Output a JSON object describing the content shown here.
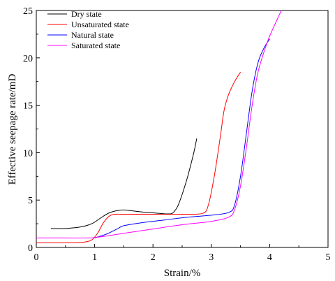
{
  "chart_data": {
    "type": "line",
    "title": "",
    "xlabel": "Strain/%",
    "ylabel": "Effective seepage rate/mD",
    "xlim": [
      0,
      5
    ],
    "ylim": [
      0,
      25
    ],
    "xticks": [
      "0",
      "1",
      "2",
      "3",
      "4",
      "5"
    ],
    "yticks": [
      "0",
      "5",
      "10",
      "15",
      "20",
      "25"
    ],
    "grid": false,
    "legend_position": "top-left",
    "series": [
      {
        "name": "Dry state",
        "color": "#000000",
        "x": [
          0.25,
          0.5,
          0.75,
          0.95,
          1.1,
          1.25,
          1.4,
          1.5,
          1.6,
          1.8,
          2.0,
          2.2,
          2.3,
          2.35,
          2.42,
          2.5,
          2.6,
          2.7,
          2.75
        ],
        "y": [
          2.0,
          2.0,
          2.15,
          2.5,
          3.1,
          3.65,
          3.9,
          3.95,
          3.9,
          3.75,
          3.65,
          3.55,
          3.55,
          3.7,
          4.3,
          5.6,
          7.6,
          10.0,
          11.5
        ]
      },
      {
        "name": "Unsaturated state",
        "color": "#ff0000",
        "x": [
          0.0,
          0.5,
          0.8,
          0.95,
          1.05,
          1.15,
          1.25,
          1.35,
          1.5,
          2.0,
          2.5,
          2.85,
          2.95,
          3.05,
          3.15,
          3.22,
          3.3,
          3.4,
          3.5
        ],
        "y": [
          0.5,
          0.5,
          0.55,
          0.8,
          1.5,
          2.6,
          3.3,
          3.5,
          3.5,
          3.5,
          3.5,
          3.6,
          4.5,
          7.5,
          11.5,
          14.5,
          16.2,
          17.5,
          18.5
        ]
      },
      {
        "name": "Natural state",
        "color": "#0000ff",
        "x": [
          1.0,
          1.2,
          1.4,
          1.5,
          1.8,
          2.2,
          2.6,
          3.0,
          3.3,
          3.4,
          3.5,
          3.6,
          3.7,
          3.8,
          3.9,
          4.0
        ],
        "y": [
          1.0,
          1.4,
          2.0,
          2.3,
          2.6,
          2.9,
          3.2,
          3.4,
          3.7,
          4.5,
          7.5,
          12.0,
          16.5,
          19.5,
          21.0,
          22.0
        ]
      },
      {
        "name": "Saturated state",
        "color": "#ff00ff",
        "x": [
          0.0,
          0.5,
          0.9,
          1.0,
          1.2,
          1.5,
          2.0,
          2.5,
          3.0,
          3.3,
          3.4,
          3.5,
          3.6,
          3.7,
          3.8,
          3.95,
          4.05,
          4.2
        ],
        "y": [
          1.0,
          1.0,
          1.0,
          1.05,
          1.2,
          1.5,
          1.95,
          2.4,
          2.75,
          3.2,
          4.0,
          6.5,
          10.5,
          15.0,
          18.5,
          21.5,
          23.0,
          25.0
        ]
      }
    ]
  }
}
